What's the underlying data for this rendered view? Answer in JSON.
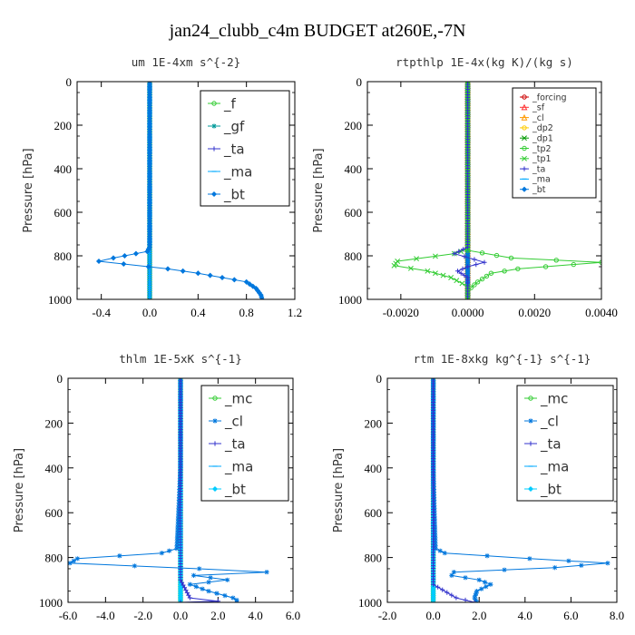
{
  "figure_title": "jan24_clubb_c4m  BUDGET at260E,-7N",
  "chart_data": [
    {
      "type": "line",
      "title": "um  1E-4xm s^{-2}",
      "ylabel": "Pressure [hPa]",
      "xlim": [
        -0.6,
        1.2
      ],
      "ylim": [
        1000,
        0
      ],
      "xticks": [
        "-0.4",
        "0.0",
        "0.4",
        "0.8",
        "1.2"
      ],
      "xtick_values": [
        -0.4,
        0.0,
        0.4,
        0.8,
        1.2
      ],
      "yticks": [
        "0",
        "200",
        "400",
        "600",
        "800",
        "1000"
      ],
      "legend_position": "top-right",
      "series": [
        {
          "name": "_f",
          "color": "#33cc33",
          "marker": "circle",
          "x": [
            0,
            0,
            0,
            0,
            0,
            0,
            0,
            0,
            0,
            0,
            0
          ],
          "y": [
            0,
            100,
            200,
            300,
            400,
            500,
            600,
            700,
            800,
            900,
            1000
          ]
        },
        {
          "name": "_gf",
          "color": "#009999",
          "marker": "star",
          "x": [
            0,
            0,
            0,
            0
          ],
          "y": [
            0,
            300,
            600,
            1000
          ]
        },
        {
          "name": "_ta",
          "color": "#3333cc",
          "marker": "plus",
          "x": [
            0,
            0,
            0,
            0
          ],
          "y": [
            0,
            300,
            600,
            1000
          ]
        },
        {
          "name": "_ma",
          "color": "#00aaff",
          "marker": "dash",
          "x": [
            0,
            0,
            0,
            0
          ],
          "y": [
            0,
            300,
            600,
            1000
          ]
        },
        {
          "name": "_bt",
          "color": "#0077dd",
          "marker": "diamond",
          "x": [
            0,
            0,
            0,
            -0.02,
            -0.3,
            -0.42,
            -0.01,
            0.15,
            0.4,
            0.6,
            0.8,
            0.88,
            0.92,
            0.93
          ],
          "y": [
            0,
            400,
            760,
            780,
            810,
            825,
            850,
            860,
            880,
            900,
            920,
            950,
            980,
            1000
          ]
        }
      ]
    },
    {
      "type": "line",
      "title": "rtpthlp  1E-4x(kg K)/(kg s)",
      "ylabel": "Pressure [hPa]",
      "xlim": [
        -0.003,
        0.004
      ],
      "ylim": [
        1000,
        0
      ],
      "xticks": [
        "-0.0020",
        "0.0000",
        "0.0020",
        "0.0040"
      ],
      "xtick_values": [
        -0.002,
        0.0,
        0.002,
        0.004
      ],
      "yticks": [
        "0",
        "200",
        "400",
        "600",
        "800",
        "1000"
      ],
      "legend_position": "top-right",
      "series": [
        {
          "name": "_forcing",
          "color": "#cc0000",
          "marker": "circle",
          "x": [
            0,
            0,
            0,
            0,
            0,
            0,
            0,
            0,
            0,
            0,
            0
          ],
          "y": [
            0,
            100,
            200,
            300,
            400,
            500,
            600,
            700,
            800,
            900,
            1000
          ]
        },
        {
          "name": "_sf",
          "color": "#ff3333",
          "marker": "tri",
          "x": [
            0,
            0,
            0
          ],
          "y": [
            0,
            500,
            1000
          ]
        },
        {
          "name": "_cl",
          "color": "#ff9900",
          "marker": "tri",
          "x": [
            0,
            0,
            0
          ],
          "y": [
            0,
            500,
            1000
          ]
        },
        {
          "name": "_dp2",
          "color": "#ffcc00",
          "marker": "circle",
          "x": [
            0,
            0,
            0
          ],
          "y": [
            0,
            500,
            1000
          ]
        },
        {
          "name": "_dp1",
          "color": "#009900",
          "marker": "x",
          "x": [
            0,
            0,
            0
          ],
          "y": [
            0,
            500,
            1000
          ]
        },
        {
          "name": "_tp2",
          "color": "#33cc33",
          "marker": "circle",
          "x": [
            0,
            0,
            0,
            0.0013,
            0.004,
            0.0015,
            0.0007,
            0.0003,
            0,
            0
          ],
          "y": [
            0,
            760,
            775,
            810,
            830,
            860,
            880,
            920,
            960,
            1000
          ]
        },
        {
          "name": "_tp1",
          "color": "#33cc33",
          "marker": "x",
          "x": [
            0,
            0,
            -0.0004,
            -0.0021,
            -0.0022,
            -0.0012,
            -0.0005,
            0,
            0
          ],
          "y": [
            0,
            770,
            790,
            825,
            845,
            870,
            900,
            940,
            1000
          ]
        },
        {
          "name": "_ta",
          "color": "#3333cc",
          "marker": "plus",
          "x": [
            0,
            0,
            -0.0004,
            0.0005,
            0,
            -0.0003,
            0,
            0
          ],
          "y": [
            0,
            760,
            790,
            830,
            850,
            870,
            900,
            1000
          ]
        },
        {
          "name": "_ma",
          "color": "#00aaff",
          "marker": "dash",
          "x": [
            0,
            0,
            0
          ],
          "y": [
            0,
            500,
            1000
          ]
        },
        {
          "name": "_bt",
          "color": "#0077dd",
          "marker": "diamond",
          "x": [
            0,
            0,
            0
          ],
          "y": [
            0,
            500,
            1000
          ]
        }
      ]
    },
    {
      "type": "line",
      "title": "thlm  1E-5xK s^{-1}",
      "ylabel": "Pressure [hPa]",
      "xlim": [
        -6.0,
        6.0
      ],
      "ylim": [
        1000,
        0
      ],
      "xticks": [
        "-6.0",
        "-4.0",
        "-2.0",
        "0.0",
        "2.0",
        "4.0",
        "6.0"
      ],
      "xtick_values": [
        -6,
        -4,
        -2,
        0,
        2,
        4,
        6
      ],
      "yticks": [
        "0",
        "200",
        "400",
        "600",
        "800",
        "1000"
      ],
      "legend_position": "top-right",
      "series": [
        {
          "name": "_mc",
          "color": "#33cc33",
          "marker": "circle",
          "x": [
            0,
            0,
            0,
            0,
            0,
            0,
            0,
            0,
            0,
            0,
            0
          ],
          "y": [
            0,
            100,
            200,
            300,
            400,
            500,
            600,
            700,
            800,
            900,
            1000
          ]
        },
        {
          "name": "_cl",
          "color": "#0077dd",
          "marker": "star",
          "x": [
            0,
            0,
            -0.2,
            -1.0,
            -5.5,
            -5.9,
            1.0,
            4.6,
            0.7,
            2.5,
            0.5,
            1.5,
            2.8,
            3.0,
            3.0
          ],
          "y": [
            0,
            400,
            760,
            780,
            805,
            825,
            850,
            865,
            880,
            900,
            920,
            950,
            980,
            990,
            1000
          ]
        },
        {
          "name": "_ta",
          "color": "#3333cc",
          "marker": "plus",
          "x": [
            0,
            0,
            0.5,
            2.0,
            0
          ],
          "y": [
            0,
            900,
            980,
            995,
            1000
          ]
        },
        {
          "name": "_ma",
          "color": "#00aaff",
          "marker": "dash",
          "x": [
            0,
            0,
            0
          ],
          "y": [
            0,
            500,
            1000
          ]
        },
        {
          "name": "_bt",
          "color": "#00ccff",
          "marker": "diamond",
          "x": [
            0,
            0,
            0
          ],
          "y": [
            0,
            500,
            1000
          ]
        }
      ]
    },
    {
      "type": "line",
      "title": "rtm  1E-8xkg kg^{-1} s^{-1}",
      "ylabel": "Pressure [hPa]",
      "xlim": [
        -2.0,
        8.0
      ],
      "ylim": [
        1000,
        0
      ],
      "xticks": [
        "-2.0",
        "0.0",
        "2.0",
        "4.0",
        "6.0",
        "8.0"
      ],
      "xtick_values": [
        -2,
        0,
        2,
        4,
        6,
        8
      ],
      "yticks": [
        "0",
        "200",
        "400",
        "600",
        "800",
        "1000"
      ],
      "legend_position": "top-right",
      "series": [
        {
          "name": "_mc",
          "color": "#33cc33",
          "marker": "circle",
          "x": [
            0,
            0,
            0,
            0,
            0,
            0,
            0,
            0,
            0,
            0,
            0
          ],
          "y": [
            0,
            100,
            200,
            300,
            400,
            500,
            600,
            700,
            800,
            900,
            1000
          ]
        },
        {
          "name": "_cl",
          "color": "#0077dd",
          "marker": "star",
          "x": [
            0,
            0,
            0.1,
            0.5,
            4.2,
            7.6,
            5.3,
            0.9,
            0.8,
            2.0,
            2.5,
            1.9,
            1.8,
            1.9
          ],
          "y": [
            0,
            400,
            760,
            780,
            805,
            825,
            845,
            865,
            880,
            900,
            920,
            950,
            980,
            1000
          ]
        },
        {
          "name": "_ta",
          "color": "#3333cc",
          "marker": "plus",
          "x": [
            0,
            0,
            1.0,
            1.8
          ],
          "y": [
            0,
            920,
            980,
            1000
          ]
        },
        {
          "name": "_ma",
          "color": "#00aaff",
          "marker": "dash",
          "x": [
            0,
            0,
            0
          ],
          "y": [
            0,
            500,
            1000
          ]
        },
        {
          "name": "_bt",
          "color": "#00ccff",
          "marker": "diamond",
          "x": [
            0,
            0,
            0
          ],
          "y": [
            0,
            500,
            1000
          ]
        }
      ]
    }
  ]
}
